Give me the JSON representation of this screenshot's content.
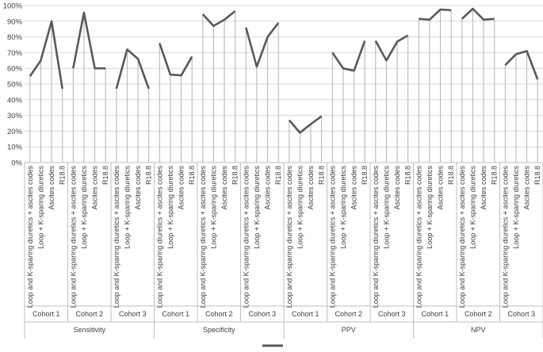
{
  "chart_data": {
    "type": "line",
    "ylim": [
      0,
      100
    ],
    "y_ticks": [
      "0%",
      "10%",
      "20%",
      "30%",
      "40%",
      "50%",
      "60%",
      "70%",
      "80%",
      "90%",
      "100%"
    ],
    "grid": true,
    "line_color": "#595959",
    "grid_color": "#d9d9d9",
    "legend": {
      "position": "bottom",
      "entries": [
        ""
      ]
    },
    "groups": [
      {
        "metric": "Sensitivity",
        "cohorts": [
          {
            "name": "Cohort 1",
            "categories": [
              "Loop and K-sparing diuretics + ascites codes",
              "Loop + K-sparing diuretics",
              "Ascites codes",
              "R18.8"
            ],
            "values": [
              55,
              65,
              90,
              47
            ]
          },
          {
            "name": "Cohort 2",
            "categories": [
              "Loop and K-sparing diuretics + ascites codes",
              "Loop + K-sparing diuretics",
              "Ascites codes",
              "R18.8"
            ],
            "values": [
              60,
              95.5,
              60,
              60
            ]
          },
          {
            "name": "Cohort 3",
            "categories": [
              "Loop and K-sparing diuretics + ascites codes",
              "Loop + K-sparing diuretics",
              "Ascites codes",
              "R18.8"
            ],
            "values": [
              47,
              72,
              66,
              47
            ]
          }
        ]
      },
      {
        "metric": "Specificity",
        "cohorts": [
          {
            "name": "Cohort 1",
            "categories": [
              "Loop and K-sparing diuretics + ascites codes",
              "Loop + K-sparing diuretics",
              "Ascites codes",
              "R18.8"
            ],
            "values": [
              76,
              56,
              55.5,
              67.5
            ]
          },
          {
            "name": "Cohort 2",
            "categories": [
              "Loop and K-sparing diuretics + ascites codes",
              "Loop + K-sparing diuretics",
              "Ascites codes",
              "R18.8"
            ],
            "values": [
              94.5,
              87,
              91,
              96.5
            ]
          },
          {
            "name": "Cohort 3",
            "categories": [
              "Loop and K-sparing diuretics + ascites codes",
              "Loop + K-sparing diuretics",
              "Ascites codes",
              "R18.8"
            ],
            "values": [
              86,
              61,
              80,
              89
            ]
          }
        ]
      },
      {
        "metric": "PPV",
        "cohorts": [
          {
            "name": "Cohort 1",
            "categories": [
              "Loop and K-sparing diuretics + ascites codes",
              "Loop + K-sparing diuretics",
              "Ascites codes",
              "R18.8"
            ],
            "values": [
              27,
              19,
              24.5,
              29.5
            ]
          },
          {
            "name": "Cohort 2",
            "categories": [
              "Loop and K-sparing diuretics + ascites codes",
              "Loop + K-sparing diuretics",
              "Ascites codes",
              "R18.8"
            ],
            "values": [
              70,
              60,
              58.5,
              77.5
            ]
          },
          {
            "name": "Cohort 3",
            "categories": [
              "Loop and K-sparing diuretics + ascites codes",
              "Loop + K-sparing diuretics",
              "Ascites codes",
              "R18.8"
            ],
            "values": [
              77.5,
              65,
              77,
              81
            ]
          }
        ]
      },
      {
        "metric": "NPV",
        "cohorts": [
          {
            "name": "Cohort 1",
            "categories": [
              "Loop and K-sparing diuretics + ascites codes",
              "Loop + K-sparing diuretics",
              "Ascites codes",
              "R18.8"
            ],
            "values": [
              91.5,
              91,
              97.5,
              97
            ]
          },
          {
            "name": "Cohort 2",
            "categories": [
              "Loop and K-sparing diuretics + ascites codes",
              "Loop + K-sparing diuretics",
              "Ascites codes",
              "R18.8"
            ],
            "values": [
              91.5,
              98,
              91,
              91.5
            ]
          },
          {
            "name": "Cohort 3",
            "categories": [
              "Loop and K-sparing diuretics + ascites codes",
              "Loop + K-sparing diuretics",
              "Ascites codes",
              "R18.8"
            ],
            "values": [
              62,
              69,
              71,
              53
            ]
          }
        ]
      }
    ]
  }
}
